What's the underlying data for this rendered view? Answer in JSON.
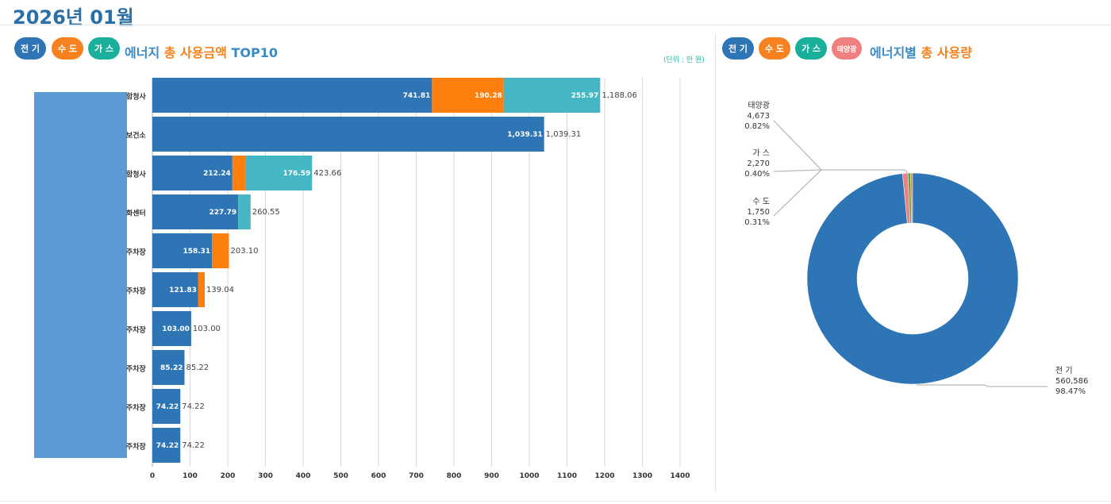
{
  "page": {
    "title": "2026년 01월"
  },
  "left_panel": {
    "badges": [
      {
        "label": "전 기",
        "color": "#2e75b6"
      },
      {
        "label": "수 도",
        "color": "#f5821f"
      },
      {
        "label": "가 스",
        "color": "#1aaf9b"
      }
    ],
    "title_prefix": "에너지",
    "title_highlight": "총 사용금액",
    "title_suffix": "TOP10",
    "unit": "(단위 : 만 원)"
  },
  "right_panel": {
    "badges": [
      {
        "label": "전 기",
        "color": "#2e75b6"
      },
      {
        "label": "수 도",
        "color": "#f5821f"
      },
      {
        "label": "가 스",
        "color": "#1aaf9b"
      },
      {
        "label": "태양광",
        "color": "#f08080"
      }
    ],
    "title_prefix": "에너지별",
    "title_highlight": "총 사용량"
  },
  "chart_data": [
    {
      "type": "bar",
      "orientation": "horizontal",
      "stacked": true,
      "categories": [
        "함청사",
        "보건소",
        "함청사",
        "화센터",
        "주차장",
        "주차장",
        "주차장",
        "주차장",
        "주차장",
        "주차장"
      ],
      "series": [
        {
          "name": "전 기",
          "color": "#2e75b6",
          "values": [
            741.81,
            1039.31,
            212.24,
            227.79,
            158.31,
            121.83,
            103.0,
            85.22,
            74.22,
            74.22
          ],
          "labels": [
            "741.81",
            "1,039.31",
            "212.24",
            "227.79",
            "158.31",
            "121.83",
            "103.00",
            "85.22",
            "74.22",
            "74.22"
          ]
        },
        {
          "name": "수 도",
          "color": "#ff7f0e",
          "values": [
            190.28,
            0,
            34.83,
            0,
            44.79,
            17.21,
            0,
            0,
            0,
            0
          ],
          "labels": [
            "190.28",
            "",
            "",
            "",
            "",
            "",
            "",
            "",
            "",
            ""
          ]
        },
        {
          "name": "가 스",
          "color": "#45b6c4",
          "values": [
            255.97,
            0,
            176.59,
            32.76,
            0,
            0,
            0,
            0,
            0,
            0
          ],
          "labels": [
            "255.97",
            "",
            "176.59",
            "",
            "",
            "",
            "",
            "",
            "",
            ""
          ]
        }
      ],
      "totals": [
        "1,188.06",
        "1,039.31",
        "423.66",
        "260.55",
        "203.10",
        "139.04",
        "103.00",
        "85.22",
        "74.22",
        "74.22"
      ],
      "total_values": [
        1188.06,
        1039.31,
        423.66,
        260.55,
        203.1,
        139.04,
        103.0,
        85.22,
        74.22,
        74.22
      ],
      "xlim": [
        0,
        1400
      ],
      "xticks": [
        0,
        100,
        200,
        300,
        400,
        500,
        600,
        700,
        800,
        900,
        1000,
        1100,
        1200,
        1300,
        1400
      ],
      "grid": true
    },
    {
      "type": "pie",
      "donut": true,
      "slices": [
        {
          "name": "전 기",
          "value": 560586,
          "value_label": "560,586",
          "percent": "98.47%",
          "color": "#2e75b6"
        },
        {
          "name": "수 도",
          "value": 1750,
          "value_label": "1,750",
          "percent": "0.31%",
          "color": "#f5821f"
        },
        {
          "name": "가 스",
          "value": 2270,
          "value_label": "2,270",
          "percent": "0.40%",
          "color": "#4aa564"
        },
        {
          "name": "태양광",
          "value": 4673,
          "value_label": "4,673",
          "percent": "0.82%",
          "color": "#f08080"
        }
      ]
    }
  ]
}
